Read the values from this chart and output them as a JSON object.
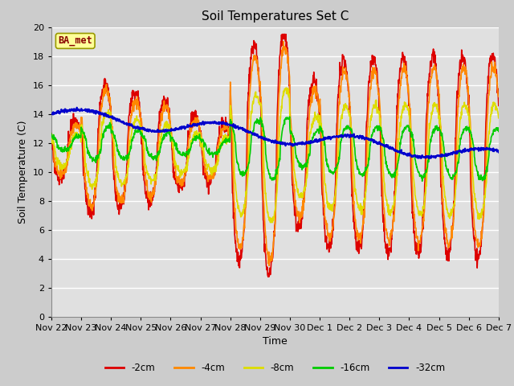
{
  "title": "Soil Temperatures Set C",
  "xlabel": "Time",
  "ylabel": "Soil Temperature (C)",
  "ylim": [
    0,
    20
  ],
  "background_color": "#cccccc",
  "plot_bg_color": "#e0e0e0",
  "grid_color": "#ffffff",
  "label_box_text": "BA_met",
  "label_box_facecolor": "#ffff99",
  "label_box_edgecolor": "#999900",
  "label_box_textcolor": "#880000",
  "series": {
    "-2cm": {
      "color": "#dd0000",
      "lw": 1.2
    },
    "-4cm": {
      "color": "#ff8800",
      "lw": 1.2
    },
    "-8cm": {
      "color": "#dddd00",
      "lw": 1.2
    },
    "-16cm": {
      "color": "#00cc00",
      "lw": 1.2
    },
    "-32cm": {
      "color": "#0000cc",
      "lw": 1.5
    }
  },
  "xtick_labels": [
    "Nov 22",
    "Nov 23",
    "Nov 24",
    "Nov 25",
    "Nov 26",
    "Nov 27",
    "Nov 28",
    "Nov 29",
    "Nov 30",
    "Dec 1",
    "Dec 2",
    "Dec 3",
    "Dec 4",
    "Dec 5",
    "Dec 6",
    "Dec 7"
  ],
  "ytick_vals": [
    0,
    2,
    4,
    6,
    8,
    10,
    12,
    14,
    16,
    18,
    20
  ],
  "figsize": [
    6.4,
    4.8
  ],
  "dpi": 100
}
